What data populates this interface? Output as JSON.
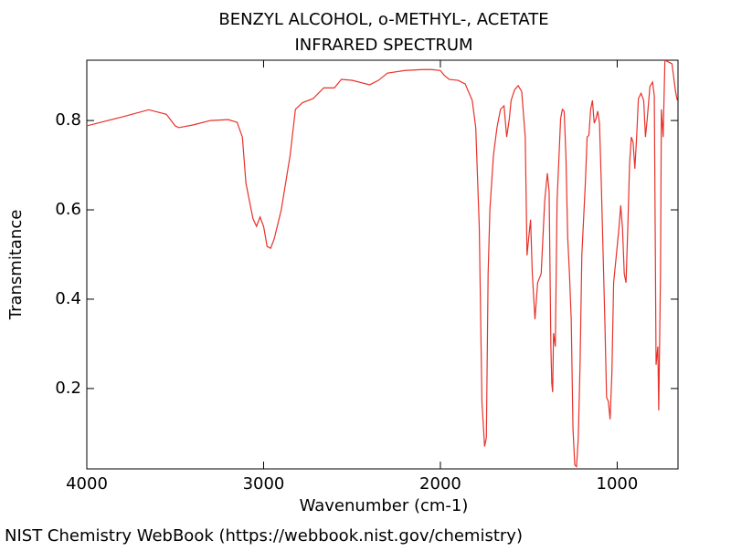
{
  "chart_data": {
    "type": "line",
    "title": "BENZYL ALCOHOL, o-METHYL-, ACETATE",
    "subtitle": "INFRARED SPECTRUM",
    "x_label": "Wavenumber (cm-1)",
    "y_label": "Transmitance",
    "caption": "NIST Chemistry WebBook (https://webbook.nist.gov/chemistry)",
    "color": "#e8312a",
    "xlim": [
      4000,
      656
    ],
    "ylim": [
      0.02,
      0.935
    ],
    "xticks": [
      4000,
      3000,
      2000,
      1000
    ],
    "yticks": [
      0.2,
      0.4,
      0.6,
      0.8
    ],
    "x": [
      4000,
      3800,
      3650,
      3550,
      3500,
      3480,
      3400,
      3300,
      3200,
      3150,
      3120,
      3100,
      3080,
      3060,
      3040,
      3020,
      3000,
      2980,
      2960,
      2940,
      2900,
      2850,
      2820,
      2780,
      2720,
      2660,
      2600,
      2560,
      2500,
      2400,
      2350,
      2300,
      2200,
      2100,
      2050,
      2000,
      1980,
      1950,
      1900,
      1860,
      1820,
      1800,
      1780,
      1765,
      1750,
      1740,
      1730,
      1720,
      1700,
      1680,
      1660,
      1640,
      1625,
      1610,
      1600,
      1580,
      1560,
      1540,
      1520,
      1510,
      1500,
      1490,
      1480,
      1465,
      1450,
      1430,
      1410,
      1395,
      1385,
      1375,
      1370,
      1365,
      1360,
      1350,
      1340,
      1320,
      1310,
      1300,
      1290,
      1280,
      1270,
      1260,
      1250,
      1240,
      1230,
      1220,
      1210,
      1200,
      1180,
      1170,
      1160,
      1150,
      1140,
      1130,
      1120,
      1110,
      1100,
      1090,
      1070,
      1060,
      1050,
      1040,
      1030,
      1020,
      1000,
      990,
      980,
      970,
      960,
      950,
      940,
      930,
      920,
      910,
      900,
      890,
      880,
      865,
      850,
      840,
      830,
      815,
      800,
      790,
      780,
      770,
      765,
      755,
      750,
      740,
      730,
      710,
      690,
      670,
      660
    ],
    "values": [
      0.788,
      0.808,
      0.824,
      0.814,
      0.788,
      0.784,
      0.79,
      0.8,
      0.802,
      0.796,
      0.763,
      0.66,
      0.62,
      0.58,
      0.563,
      0.584,
      0.563,
      0.518,
      0.514,
      0.535,
      0.6,
      0.722,
      0.825,
      0.84,
      0.849,
      0.873,
      0.873,
      0.892,
      0.89,
      0.88,
      0.89,
      0.906,
      0.912,
      0.914,
      0.914,
      0.912,
      0.902,
      0.892,
      0.89,
      0.882,
      0.845,
      0.784,
      0.56,
      0.17,
      0.07,
      0.09,
      0.457,
      0.6,
      0.722,
      0.784,
      0.825,
      0.833,
      0.763,
      0.804,
      0.845,
      0.869,
      0.878,
      0.865,
      0.763,
      0.498,
      0.539,
      0.578,
      0.457,
      0.355,
      0.437,
      0.457,
      0.62,
      0.682,
      0.641,
      0.294,
      0.212,
      0.192,
      0.324,
      0.294,
      0.62,
      0.804,
      0.825,
      0.821,
      0.722,
      0.539,
      0.457,
      0.355,
      0.11,
      0.029,
      0.025,
      0.09,
      0.253,
      0.498,
      0.661,
      0.763,
      0.767,
      0.825,
      0.845,
      0.794,
      0.804,
      0.821,
      0.794,
      0.661,
      0.355,
      0.18,
      0.171,
      0.131,
      0.233,
      0.437,
      0.518,
      0.559,
      0.61,
      0.559,
      0.457,
      0.437,
      0.559,
      0.702,
      0.763,
      0.751,
      0.692,
      0.763,
      0.849,
      0.861,
      0.845,
      0.763,
      0.804,
      0.876,
      0.886,
      0.855,
      0.253,
      0.294,
      0.151,
      0.457,
      0.825,
      0.763,
      0.935,
      0.931,
      0.927,
      0.865,
      0.845
    ]
  }
}
